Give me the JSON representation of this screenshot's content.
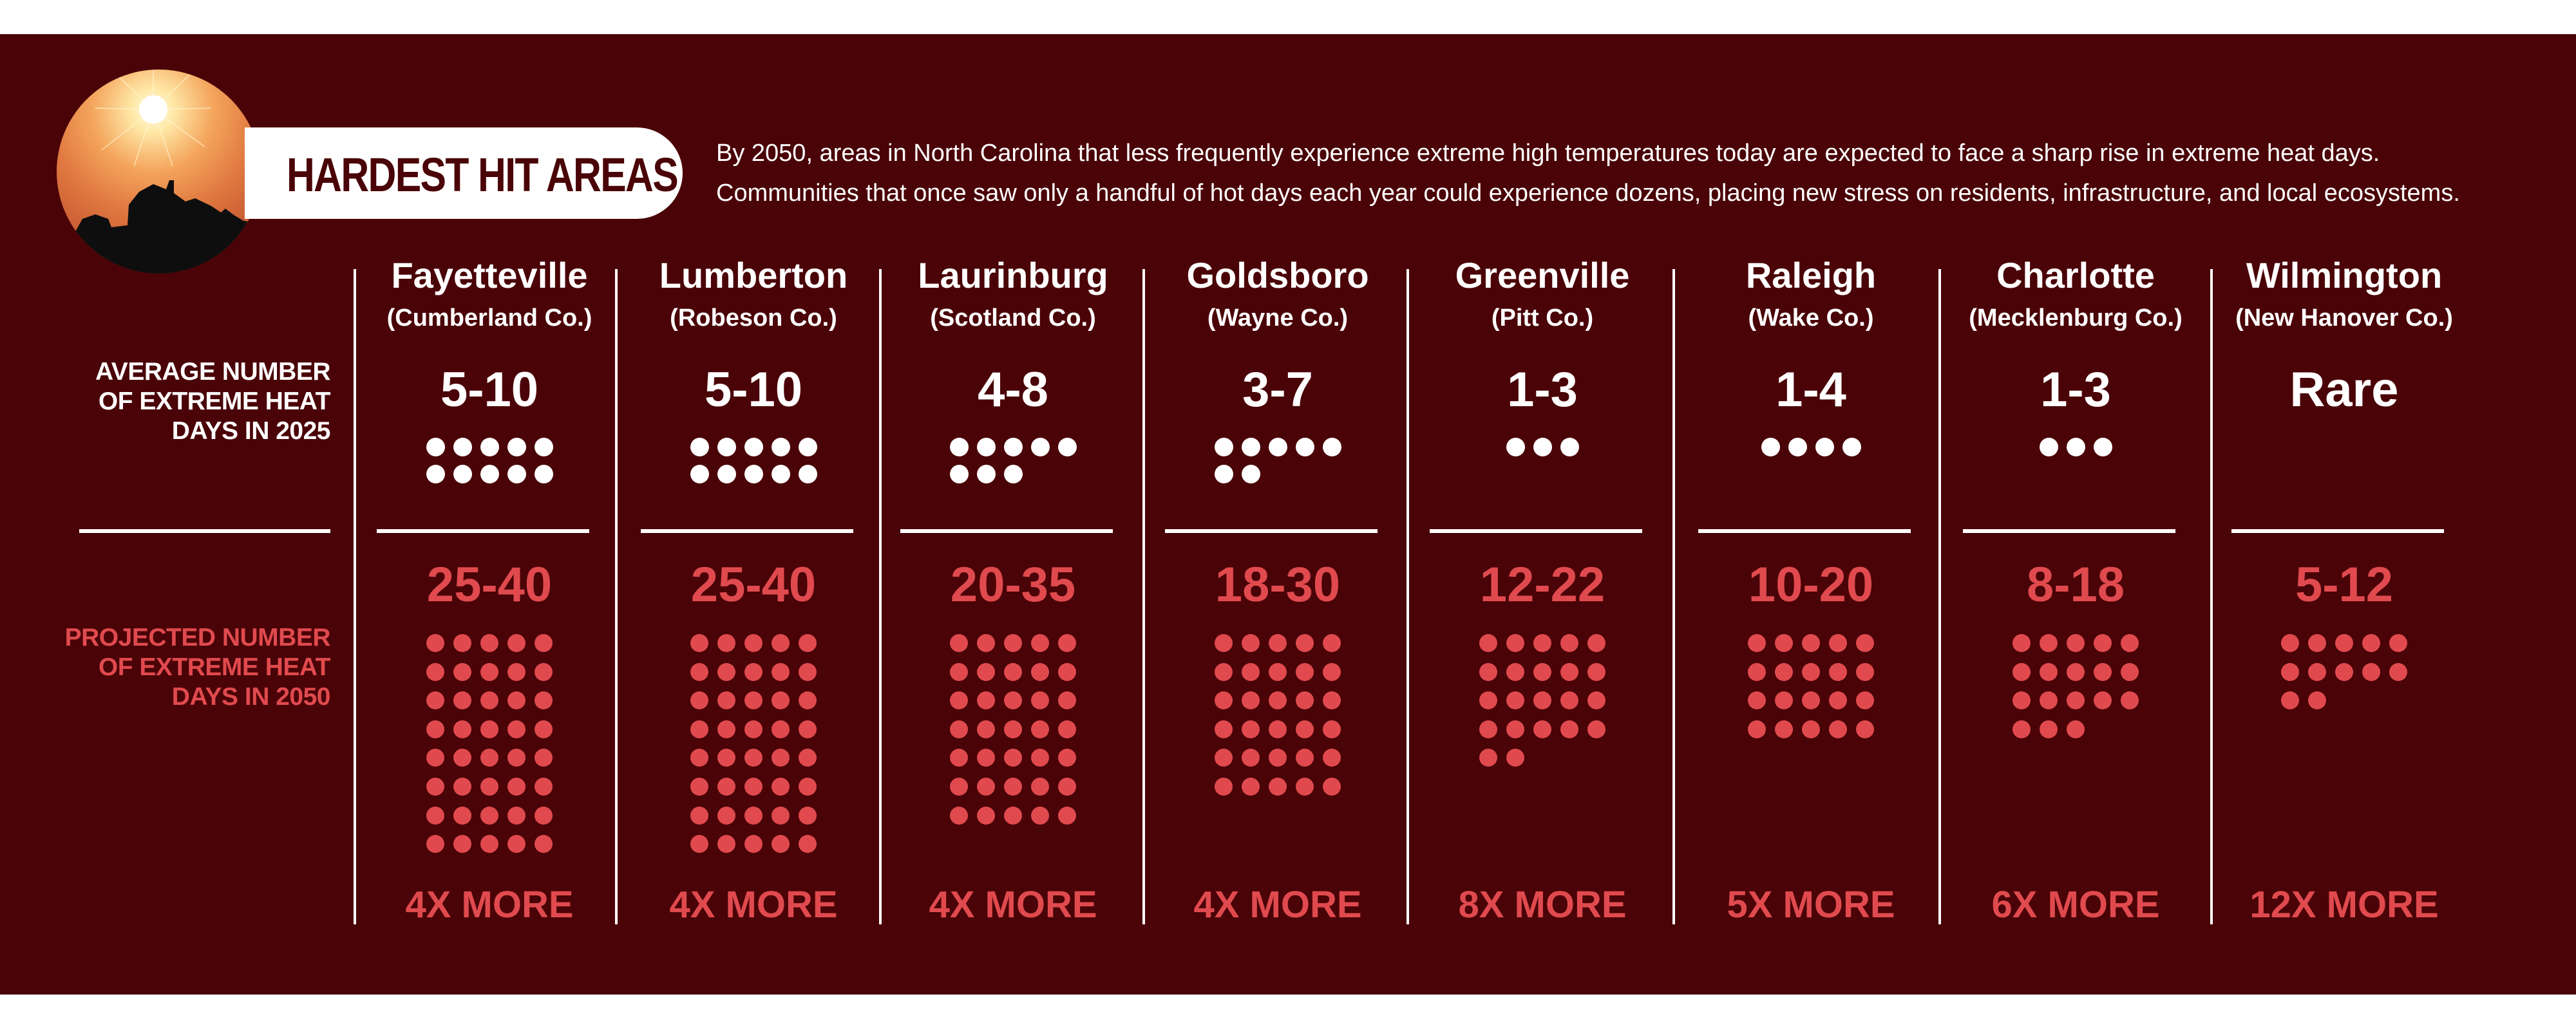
{
  "header": {
    "title": "HARDEST HIT AREAS",
    "intro_line1": "By 2050, areas in North Carolina that less frequently experience extreme high temperatures today are expected to face a sharp rise in extreme heat days.",
    "intro_line2": "Communities that once saw only a handful of hot days each year could experience dozens, placing new stress on residents, infrastructure, and local ecosystems."
  },
  "labels": {
    "current_line1": "AVERAGE NUMBER",
    "current_line2": "OF EXTREME HEAT",
    "current_line3": "DAYS IN 2025",
    "projected_line1": "PROJECTED NUMBER",
    "projected_line2": "OF EXTREME HEAT",
    "projected_line3": "DAYS IN 2050"
  },
  "colors": {
    "background": "#4a0307",
    "accent_red": "#e04a4e",
    "white": "#ffffff"
  },
  "cities": [
    {
      "name": "Fayetteville",
      "county": "(Cumberland Co.)",
      "current": "5-10",
      "current_dots": 10,
      "projected": "25-40",
      "projected_dots": 40,
      "increase": "4X MORE"
    },
    {
      "name": "Lumberton",
      "county": "(Robeson Co.)",
      "current": "5-10",
      "current_dots": 10,
      "projected": "25-40",
      "projected_dots": 40,
      "increase": "4X MORE"
    },
    {
      "name": "Laurinburg",
      "county": "(Scotland Co.)",
      "current": "4-8",
      "current_dots": 8,
      "projected": "20-35",
      "projected_dots": 35,
      "increase": "4X MORE"
    },
    {
      "name": "Goldsboro",
      "county": "(Wayne Co.)",
      "current": "3-7",
      "current_dots": 7,
      "projected": "18-30",
      "projected_dots": 30,
      "increase": "4X MORE"
    },
    {
      "name": "Greenville",
      "county": "(Pitt Co.)",
      "current": "1-3",
      "current_dots": 3,
      "projected": "12-22",
      "projected_dots": 22,
      "increase": "8X MORE"
    },
    {
      "name": "Raleigh",
      "county": "(Wake Co.)",
      "current": "1-4",
      "current_dots": 4,
      "projected": "10-20",
      "projected_dots": 20,
      "increase": "5X MORE"
    },
    {
      "name": "Charlotte",
      "county": "(Mecklenburg Co.)",
      "current": "1-3",
      "current_dots": 3,
      "projected": "8-18",
      "projected_dots": 18,
      "increase": "6X MORE"
    },
    {
      "name": "Wilmington",
      "county": "(New Hanover Co.)",
      "current": "Rare",
      "current_dots": 0,
      "projected": "5-12",
      "projected_dots": 12,
      "increase": "12X MORE"
    }
  ]
}
